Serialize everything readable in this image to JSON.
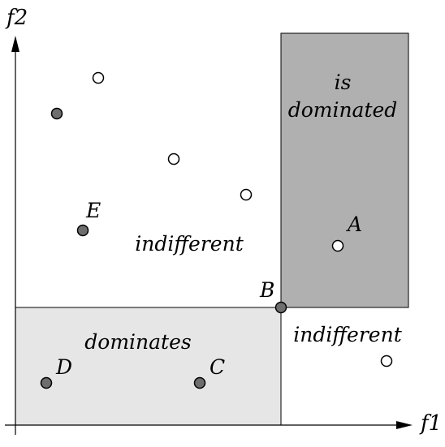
{
  "axes": {
    "x_label": "f1",
    "y_label": "f2"
  },
  "regions": {
    "dominates_label": "dominates",
    "is_dominated_label_line1": "is",
    "is_dominated_label_line2": "dominated",
    "indifferent_upper_label": "indifferent",
    "indifferent_lower_label": "indifferent"
  },
  "point_labels": {
    "A": "A",
    "B": "B",
    "C": "C",
    "D": "D",
    "E": "E"
  },
  "colors": {
    "dominated_fill": "#b0b0b0",
    "dominates_fill": "#e6e6e6",
    "filled_point": "#6e6e6e",
    "open_point": "#ffffff",
    "line": "#000000"
  }
}
